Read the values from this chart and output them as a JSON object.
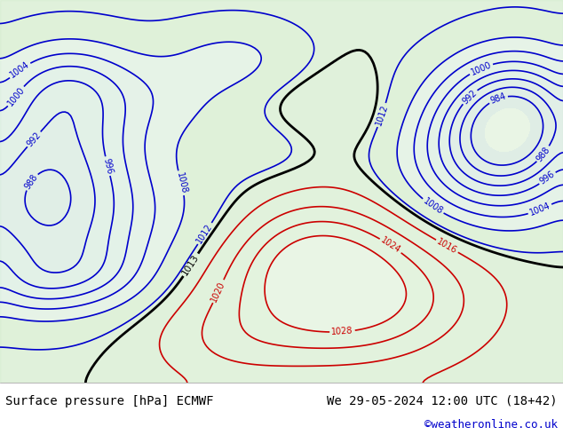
{
  "title_left": "Surface pressure [hPa] ECMWF",
  "title_right": "We 29-05-2024 12:00 UTC (18+42)",
  "copyright": "©weatheronline.co.uk",
  "bg_color": "#d0e8d0",
  "land_color": "#c8e6c0",
  "sea_color": "#d8e8f0",
  "contour_color_low": "#0000cc",
  "contour_color_high": "#cc0000",
  "contour_color_1013": "#000000",
  "text_color_left": "#000000",
  "text_color_right": "#000000",
  "text_color_copyright": "#0000cc",
  "bottom_bar_color": "#e8e8e8",
  "figsize": [
    6.34,
    4.9
  ],
  "dpi": 100
}
